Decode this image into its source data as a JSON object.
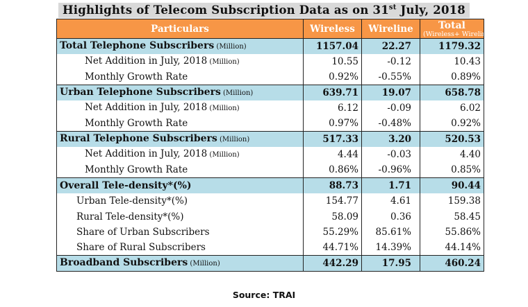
{
  "title": {
    "prefix": "Highlights of Telecom Subscription Data as on 31",
    "superscript": "st",
    "suffix": " July, 2018"
  },
  "table": {
    "headers": {
      "particulars": "Particulars",
      "wireless": "Wireless",
      "wireline": "Wireline",
      "total": "Total",
      "total_sub": "(Wireless+ Wireline)"
    },
    "rows": [
      {
        "label": "Total Telephone Subscribers",
        "unit": " (Million)",
        "wireless": "1157.04",
        "wireline": "22.27",
        "total": "1179.32"
      },
      {
        "label": "Net Addition in July, 2018",
        "unit": " (Million)",
        "wireless": "10.55",
        "wireline": "-0.12",
        "total": "10.43"
      },
      {
        "label": "Monthly Growth Rate",
        "unit": "",
        "wireless": "0.92%",
        "wireline": "-0.55%",
        "total": "0.89%"
      },
      {
        "label": "Urban Telephone Subscribers",
        "unit": " (Million)",
        "wireless": "639.71",
        "wireline": "19.07",
        "total": "658.78"
      },
      {
        "label": "Net Addition in July, 2018",
        "unit": " (Million)",
        "wireless": "6.12",
        "wireline": "-0.09",
        "total": "6.02"
      },
      {
        "label": "Monthly Growth Rate",
        "unit": "",
        "wireless": "0.97%",
        "wireline": "-0.48%",
        "total": "0.92%"
      },
      {
        "label": "Rural Telephone Subscribers",
        "unit": " (Million)",
        "wireless": "517.33",
        "wireline": "3.20",
        "total": "520.53"
      },
      {
        "label": "Net Addition in July, 2018",
        "unit": " (Million)",
        "wireless": "4.44",
        "wireline": "-0.03",
        "total": "4.40"
      },
      {
        "label": "Monthly Growth Rate",
        "unit": "",
        "wireless": "0.86%",
        "wireline": "-0.96%",
        "total": "0.85%"
      },
      {
        "label": "Overall Tele-density*(%)",
        "unit": "",
        "wireless": "88.73",
        "wireline": "1.71",
        "total": "90.44"
      },
      {
        "label": "Urban Tele-density*(%)",
        "unit": "",
        "wireless": "154.77",
        "wireline": "4.61",
        "total": "159.38"
      },
      {
        "label": "Rural Tele-density*(%)",
        "unit": "",
        "wireless": "58.09",
        "wireline": "0.36",
        "total": "58.45"
      },
      {
        "label": "Share of Urban Subscribers",
        "unit": "",
        "wireless": "55.29%",
        "wireline": "85.61%",
        "total": "55.86%"
      },
      {
        "label": "Share of Rural Subscribers",
        "unit": "",
        "wireless": "44.71%",
        "wireline": "14.39%",
        "total": "44.14%"
      },
      {
        "label": "Broadband Subscribers",
        "unit": " (Million)",
        "wireless": "442.29",
        "wireline": "17.95",
        "total": "460.24"
      }
    ]
  },
  "source": "Source: TRAI",
  "colors": {
    "header_bg": "#f79646",
    "section_bg": "#b7dde8",
    "title_bg": "#d9d9d9"
  }
}
